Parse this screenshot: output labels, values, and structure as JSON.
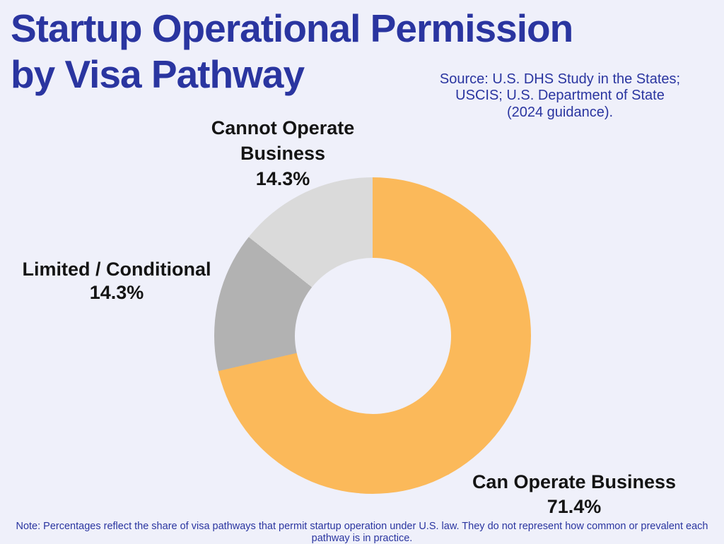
{
  "page": {
    "background": "#EFF0FA",
    "accent_blue": "#2A35A0",
    "label_color": "#141414"
  },
  "header": {
    "title_line1": "Startup Operational Permission",
    "title_line2": "by Visa Pathway",
    "title_color": "#2A35A0"
  },
  "source": {
    "lines": [
      "Source: U.S. DHS Study in the States;",
      "USCIS; U.S. Department of State",
      "(2024 guidance)."
    ]
  },
  "chart_data": {
    "type": "pie",
    "subtype": "donut",
    "title": "Startup Operational Permission by Visa Pathway",
    "labels": [
      "Can Operate Business",
      "Limited / Conditional",
      "Cannot Operate Business"
    ],
    "values": [
      71.4,
      14.3,
      14.3
    ],
    "colors": [
      "#FBB95A",
      "#B2B2B2",
      "#DADADA"
    ],
    "unit": "%",
    "start_angle_deg": 0,
    "direction": "clockwise",
    "hole_ratio": 0.49,
    "legend": "none; text callouts placed around the donut"
  },
  "callouts": {
    "cannot": {
      "line1": "Cannot Operate",
      "line2": "Business",
      "pct": "14.3%"
    },
    "limited": {
      "label": "Limited / Conditional",
      "pct": "14.3%"
    },
    "can": {
      "label": "Can Operate Business",
      "pct": "71.4%"
    }
  },
  "footnote": {
    "text": "Note: Percentages reflect the share of visa pathways that permit startup operation under U.S. law. They do not represent how common or prevalent each pathway is in practice."
  }
}
